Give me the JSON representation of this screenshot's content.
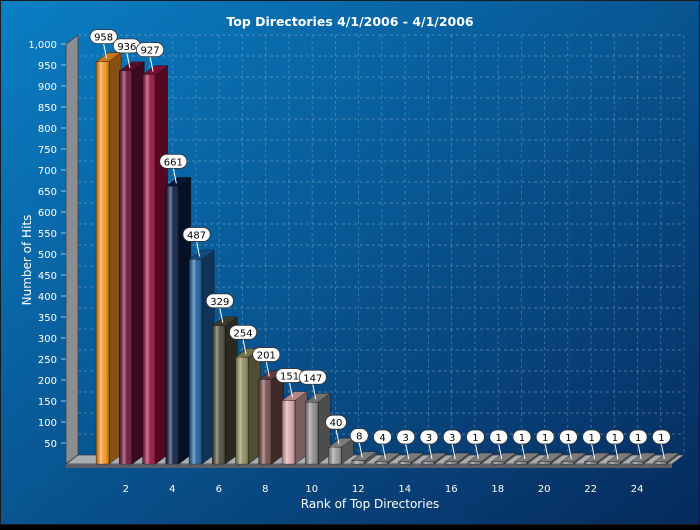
{
  "chart_data": {
    "type": "bar",
    "title": "Top Directories 4/1/2006  - 4/1/2006",
    "xlabel": "Rank of Top Directories",
    "ylabel": "Number of Hits",
    "x_tick_labels": [
      "2",
      "4",
      "6",
      "8",
      "10",
      "12",
      "14",
      "16",
      "18",
      "20",
      "22",
      "24"
    ],
    "y_tick_labels": [
      "50",
      "100",
      "150",
      "200",
      "250",
      "300",
      "350",
      "400",
      "450",
      "500",
      "550",
      "600",
      "650",
      "700",
      "750",
      "800",
      "850",
      "900",
      "950",
      "1,000"
    ],
    "ylim": [
      0,
      1000
    ],
    "grid": true,
    "categories": [
      "1",
      "2",
      "3",
      "4",
      "5",
      "6",
      "7",
      "8",
      "9",
      "10",
      "11",
      "12",
      "13",
      "14",
      "15",
      "16",
      "17",
      "18",
      "19",
      "20",
      "21",
      "22",
      "23",
      "24",
      "25"
    ],
    "values": [
      958,
      936,
      927,
      661,
      487,
      329,
      254,
      201,
      151,
      147,
      40,
      8,
      4,
      3,
      3,
      3,
      1,
      1,
      1,
      1,
      1,
      1,
      1,
      1,
      1
    ],
    "data_labels": [
      "958",
      "936",
      "927",
      "661",
      "487",
      "329",
      "254",
      "201",
      "151",
      "147",
      "40",
      "8",
      "4",
      "3",
      "3",
      "3",
      "1",
      "1",
      "1",
      "1",
      "1",
      "1",
      "1",
      "1",
      "1"
    ],
    "bar_colors": [
      "#f7941d",
      "#6d1135",
      "#99113f",
      "#0b1e45",
      "#1a5fa0",
      "#4a4a37",
      "#8f8d5a",
      "#744a4a",
      "#dca7a7",
      "#8c8c8c",
      "#9a9a9a",
      "#9a9a9a",
      "#9a9a9a",
      "#9a9a9a",
      "#9a9a9a",
      "#9a9a9a",
      "#9a9a9a",
      "#9a9a9a",
      "#9a9a9a",
      "#9a9a9a",
      "#9a9a9a",
      "#9a9a9a",
      "#9a9a9a",
      "#9a9a9a",
      "#9a9a9a"
    ],
    "colors": {
      "background_start": "#0a7fc5",
      "background_end": "#062a5c",
      "grid": "#9fb6cf",
      "text": "#ffffff"
    }
  }
}
